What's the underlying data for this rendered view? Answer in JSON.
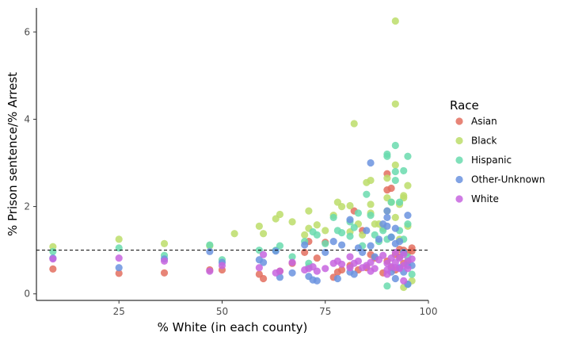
{
  "chart_data": {
    "type": "scatter",
    "title": "",
    "xlabel": "% White (in each county)",
    "ylabel": "% Prison sentence/% Arrest",
    "xlim": [
      5,
      100
    ],
    "ylim": [
      -0.15,
      6.55
    ],
    "x_ticks": [
      25,
      50,
      75,
      100
    ],
    "y_ticks": [
      0,
      2,
      4,
      6
    ],
    "reference_line": {
      "y": 1,
      "style": "dashed"
    },
    "grid": false,
    "legend": {
      "title": "Race",
      "position": "right"
    },
    "series": [
      {
        "name": "Asian",
        "color": "#E36F5F",
        "points": [
          [
            9,
            0.57
          ],
          [
            25,
            0.47
          ],
          [
            36,
            0.48
          ],
          [
            47,
            0.55
          ],
          [
            50,
            0.55
          ],
          [
            59,
            0.45
          ],
          [
            60,
            0.35
          ],
          [
            64,
            0.52
          ],
          [
            67,
            0.7
          ],
          [
            70,
            0.95
          ],
          [
            71,
            1.2
          ],
          [
            73,
            0.82
          ],
          [
            75,
            1.18
          ],
          [
            77,
            0.38
          ],
          [
            78,
            0.5
          ],
          [
            79,
            0.55
          ],
          [
            81,
            0.65
          ],
          [
            82,
            1.9
          ],
          [
            83,
            0.55
          ],
          [
            84,
            1.45
          ],
          [
            85,
            0.6
          ],
          [
            86,
            0.9
          ],
          [
            87,
            0.82
          ],
          [
            89,
            0.48
          ],
          [
            90,
            2.75
          ],
          [
            90,
            2.38
          ],
          [
            91,
            2.42
          ],
          [
            90,
            0.75
          ],
          [
            91,
            0.6
          ],
          [
            92,
            0.9
          ],
          [
            93,
            0.85
          ],
          [
            94,
            1.0
          ],
          [
            94,
            0.7
          ],
          [
            95,
            0.75
          ],
          [
            95,
            0.95
          ],
          [
            96,
            1.05
          ],
          [
            96,
            0.98
          ],
          [
            92,
            0.55
          ],
          [
            93,
            1.02
          ]
        ]
      },
      {
        "name": "Black",
        "color": "#BCDD6A",
        "points": [
          [
            9,
            1.08
          ],
          [
            25,
            1.25
          ],
          [
            36,
            1.15
          ],
          [
            47,
            1.1
          ],
          [
            53,
            1.38
          ],
          [
            59,
            1.55
          ],
          [
            60,
            1.38
          ],
          [
            63,
            1.72
          ],
          [
            64,
            1.82
          ],
          [
            67,
            1.65
          ],
          [
            70,
            1.35
          ],
          [
            71,
            1.9
          ],
          [
            71,
            1.5
          ],
          [
            73,
            1.58
          ],
          [
            75,
            1.45
          ],
          [
            77,
            1.8
          ],
          [
            78,
            2.1
          ],
          [
            79,
            2.0
          ],
          [
            81,
            2.02
          ],
          [
            81,
            1.42
          ],
          [
            82,
            3.9
          ],
          [
            83,
            1.6
          ],
          [
            84,
            1.35
          ],
          [
            85,
            2.55
          ],
          [
            86,
            2.6
          ],
          [
            86,
            1.85
          ],
          [
            86,
            2.05
          ],
          [
            87,
            1.6
          ],
          [
            88,
            1.6
          ],
          [
            89,
            1.5
          ],
          [
            90,
            2.2
          ],
          [
            90,
            2.65
          ],
          [
            90,
            1.9
          ],
          [
            91,
            2.1
          ],
          [
            92,
            6.25
          ],
          [
            92,
            4.35
          ],
          [
            92,
            2.95
          ],
          [
            92,
            1.75
          ],
          [
            93,
            2.05
          ],
          [
            94,
            2.25
          ],
          [
            94,
            2.2
          ],
          [
            95,
            2.48
          ],
          [
            95,
            1.55
          ],
          [
            94,
            0.15
          ],
          [
            96,
            0.3
          ],
          [
            93,
            1.25
          ]
        ]
      },
      {
        "name": "Hispanic",
        "color": "#6ADBAE",
        "points": [
          [
            9,
            0.97
          ],
          [
            25,
            1.05
          ],
          [
            36,
            0.88
          ],
          [
            47,
            1.12
          ],
          [
            50,
            0.78
          ],
          [
            59,
            1.0
          ],
          [
            63,
            1.0
          ],
          [
            64,
            1.1
          ],
          [
            67,
            0.85
          ],
          [
            70,
            1.2
          ],
          [
            71,
            0.7
          ],
          [
            71,
            0.62
          ],
          [
            72,
            1.42
          ],
          [
            73,
            1.35
          ],
          [
            75,
            1.15
          ],
          [
            77,
            1.75
          ],
          [
            78,
            1.45
          ],
          [
            79,
            1.4
          ],
          [
            81,
            1.32
          ],
          [
            81,
            1.65
          ],
          [
            82,
            1.52
          ],
          [
            83,
            1.85
          ],
          [
            84,
            1.1
          ],
          [
            85,
            2.28
          ],
          [
            86,
            1.8
          ],
          [
            87,
            1.35
          ],
          [
            88,
            1.2
          ],
          [
            89,
            1.45
          ],
          [
            90,
            3.2
          ],
          [
            90,
            3.15
          ],
          [
            90,
            1.25
          ],
          [
            90,
            0.18
          ],
          [
            91,
            1.3
          ],
          [
            91,
            2.1
          ],
          [
            92,
            3.4
          ],
          [
            92,
            2.6
          ],
          [
            92,
            2.8
          ],
          [
            93,
            2.1
          ],
          [
            94,
            2.82
          ],
          [
            94,
            1.25
          ],
          [
            95,
            3.15
          ],
          [
            95,
            1.6
          ],
          [
            95,
            0.85
          ],
          [
            96,
            0.45
          ],
          [
            95,
            0.22
          ],
          [
            93,
            1.45
          ]
        ]
      },
      {
        "name": "Other-Unknown",
        "color": "#6B93DF",
        "points": [
          [
            9,
            0.82
          ],
          [
            25,
            0.6
          ],
          [
            36,
            0.8
          ],
          [
            47,
            0.97
          ],
          [
            50,
            0.72
          ],
          [
            59,
            0.78
          ],
          [
            60,
            0.72
          ],
          [
            63,
            0.98
          ],
          [
            64,
            0.38
          ],
          [
            67,
            0.48
          ],
          [
            70,
            1.12
          ],
          [
            71,
            0.4
          ],
          [
            72,
            0.32
          ],
          [
            73,
            0.3
          ],
          [
            75,
            0.95
          ],
          [
            77,
            1.2
          ],
          [
            78,
            0.35
          ],
          [
            79,
            1.12
          ],
          [
            81,
            1.7
          ],
          [
            81,
            0.5
          ],
          [
            82,
            0.45
          ],
          [
            83,
            1.05
          ],
          [
            84,
            0.95
          ],
          [
            85,
            1.45
          ],
          [
            86,
            3.0
          ],
          [
            86,
            1.1
          ],
          [
            87,
            0.85
          ],
          [
            88,
            1.25
          ],
          [
            89,
            1.6
          ],
          [
            90,
            1.9
          ],
          [
            90,
            1.75
          ],
          [
            90,
            1.55
          ],
          [
            91,
            1.3
          ],
          [
            91,
            0.5
          ],
          [
            92,
            1.5
          ],
          [
            92,
            0.35
          ],
          [
            93,
            1.2
          ],
          [
            93,
            0.6
          ],
          [
            94,
            0.5
          ],
          [
            95,
            1.8
          ],
          [
            95,
            0.65
          ],
          [
            96,
            0.65
          ],
          [
            95,
            0.22
          ],
          [
            94,
            0.95
          ],
          [
            92,
            1.15
          ]
        ]
      },
      {
        "name": "White",
        "color": "#C765DF",
        "points": [
          [
            9,
            0.8
          ],
          [
            25,
            0.82
          ],
          [
            36,
            0.75
          ],
          [
            47,
            0.52
          ],
          [
            50,
            0.65
          ],
          [
            59,
            0.6
          ],
          [
            60,
            0.9
          ],
          [
            63,
            0.48
          ],
          [
            64,
            0.52
          ],
          [
            67,
            0.72
          ],
          [
            70,
            0.55
          ],
          [
            71,
            0.58
          ],
          [
            72,
            0.62
          ],
          [
            73,
            0.52
          ],
          [
            75,
            0.58
          ],
          [
            77,
            0.7
          ],
          [
            78,
            0.75
          ],
          [
            79,
            0.68
          ],
          [
            81,
            0.6
          ],
          [
            81,
            0.85
          ],
          [
            82,
            0.7
          ],
          [
            83,
            0.75
          ],
          [
            84,
            0.6
          ],
          [
            85,
            0.65
          ],
          [
            86,
            0.52
          ],
          [
            86,
            0.72
          ],
          [
            87,
            0.58
          ],
          [
            88,
            0.78
          ],
          [
            89,
            0.88
          ],
          [
            90,
            0.55
          ],
          [
            90,
            0.7
          ],
          [
            91,
            0.62
          ],
          [
            91,
            0.82
          ],
          [
            92,
            0.6
          ],
          [
            92,
            0.72
          ],
          [
            93,
            0.58
          ],
          [
            93,
            0.82
          ],
          [
            94,
            0.65
          ],
          [
            94,
            0.9
          ],
          [
            95,
            0.75
          ],
          [
            95,
            0.58
          ],
          [
            96,
            0.8
          ],
          [
            94,
            0.3
          ],
          [
            90,
            0.45
          ],
          [
            92,
            0.95
          ]
        ]
      }
    ]
  }
}
